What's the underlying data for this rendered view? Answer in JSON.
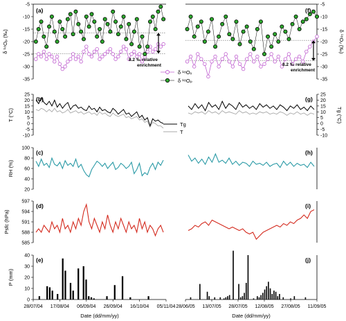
{
  "x_axis": {
    "label": "Date (dd/mm/yy)",
    "left_ticks": [
      "28/07/04",
      "17/08/04",
      "06/09/04",
      "26/09/04",
      "16/10/04",
      "05/11/04"
    ],
    "right_ticks": [
      "28/06/05",
      "13/07/05",
      "28/07/05",
      "12/08/05",
      "27/08/05",
      "11/09/05"
    ]
  },
  "panels": {
    "a": {
      "label": "(a)",
      "ylabel": "δ ¹⁸Oₚ (‰)",
      "ticks": [
        "-5",
        "-10",
        "-15",
        "-20",
        "-25",
        "-30",
        "-35"
      ]
    },
    "f": {
      "label": "(f)",
      "ylabel": "δ ¹⁸Oᵥ (‰)",
      "ticks": [
        "-5",
        "-10",
        "-15",
        "-20",
        "-25",
        "-30",
        "-35"
      ]
    },
    "b": {
      "label": "(b)",
      "ylabel": "T (°C)",
      "ticks": [
        "25",
        "20",
        "15",
        "10",
        "5",
        "0",
        "-5",
        "-10"
      ]
    },
    "g": {
      "label": "(g)",
      "ylabel": "Tg (°C)",
      "ticks": [
        "25",
        "20",
        "15",
        "10",
        "5",
        "0",
        "-5",
        "-10"
      ]
    },
    "c": {
      "label": "(c)",
      "ylabel": "RH (%)",
      "ticks": [
        "100",
        "80",
        "60",
        "40",
        "20"
      ]
    },
    "h": {
      "label": "(h)"
    },
    "d": {
      "label": "(d)",
      "ylabel": "Psfc (hPa)",
      "ticks": [
        "597",
        "594",
        "591",
        "588",
        "585"
      ]
    },
    "i": {
      "label": "(i)"
    },
    "e": {
      "label": "(e)",
      "ylabel": "P (mm)",
      "ticks": [
        "40",
        "30",
        "20",
        "10",
        "0"
      ]
    },
    "j": {
      "label": "(j)"
    }
  },
  "annotations": {
    "left_enrichment": "8.2 ‰ relative enrichment",
    "right_enrichment": "8.2 ‰ relative enrichment"
  },
  "legends": {
    "isotope": [
      "δ ¹⁸Oᵥ",
      "δ ¹⁸Oₚ"
    ],
    "temperature": [
      "Tg",
      "T"
    ]
  },
  "colors": {
    "vapor": "#c060d0",
    "precip": "#2ea82e",
    "tg": "#000000",
    "t": "#a8a8a8",
    "rh": "#2a9aa6",
    "psfc": "#d42a1e",
    "precip_bar": "#000000"
  },
  "chart_data": {
    "type": "line",
    "isotopes_2004": {
      "x": [
        "2004-07-30",
        "2004-08-01",
        "2004-08-03",
        "2004-08-05",
        "2004-08-07",
        "2004-08-09",
        "2004-08-11",
        "2004-08-13",
        "2004-08-15",
        "2004-08-17",
        "2004-08-19",
        "2004-08-21",
        "2004-08-23",
        "2004-08-25",
        "2004-08-27",
        "2004-08-29",
        "2004-08-31",
        "2004-09-02",
        "2004-09-04",
        "2004-09-06",
        "2004-09-08",
        "2004-09-10",
        "2004-09-12",
        "2004-09-14",
        "2004-09-16",
        "2004-09-18",
        "2004-09-20",
        "2004-09-22",
        "2004-09-24",
        "2004-09-26",
        "2004-09-28",
        "2004-09-30",
        "2004-10-02",
        "2004-10-04",
        "2004-10-06",
        "2004-10-08",
        "2004-10-10",
        "2004-10-12",
        "2004-10-14",
        "2004-10-16",
        "2004-10-18",
        "2004-10-20",
        "2004-10-22",
        "2004-10-24",
        "2004-10-26",
        "2004-10-28",
        "2004-10-30",
        "2004-11-01",
        "2004-11-03"
      ],
      "vapor": [
        -27,
        -25,
        -26,
        -24,
        -27,
        -25,
        -26,
        -28,
        -26,
        -29,
        -31,
        -30,
        -28,
        -27,
        -25,
        -27,
        -26,
        -28,
        -24,
        -22,
        -25,
        -26,
        -24,
        -23,
        -27,
        -26,
        -25,
        -24,
        -23,
        -25,
        -27,
        -26,
        -24,
        -22,
        -23,
        -27,
        -25,
        -24,
        -26,
        -25,
        -28,
        -26,
        -24,
        -22,
        -24,
        -23,
        -21,
        -22,
        -21
      ],
      "precip": [
        -20,
        -15,
        -12,
        -18,
        -22,
        -14,
        -10,
        -16,
        -20,
        -12,
        -15,
        -18,
        -11,
        -9,
        -17,
        -8,
        -13,
        -16,
        -19,
        -10,
        -14,
        -9,
        -12,
        -18,
        -15,
        -20,
        -11,
        -13,
        -16,
        -8,
        -12,
        -17,
        -14,
        -10,
        -19,
        -13,
        -21,
        -16,
        -11,
        -22,
        -18,
        -25,
        -22,
        -12,
        -10,
        -15,
        -8,
        -6,
        -11
      ]
    },
    "isotopes_2005": {
      "x": [
        "2005-06-29",
        "2005-07-01",
        "2005-07-03",
        "2005-07-05",
        "2005-07-07",
        "2005-07-09",
        "2005-07-11",
        "2005-07-13",
        "2005-07-15",
        "2005-07-17",
        "2005-07-19",
        "2005-07-21",
        "2005-07-23",
        "2005-07-25",
        "2005-07-27",
        "2005-07-29",
        "2005-07-31",
        "2005-08-02",
        "2005-08-04",
        "2005-08-06",
        "2005-08-08",
        "2005-08-10",
        "2005-08-12",
        "2005-08-14",
        "2005-08-16",
        "2005-08-18",
        "2005-08-20",
        "2005-08-22",
        "2005-08-24",
        "2005-08-26",
        "2005-08-28",
        "2005-08-30",
        "2005-09-01",
        "2005-09-03",
        "2005-09-05",
        "2005-09-07",
        "2005-09-09",
        "2005-09-11"
      ],
      "vapor": [
        -28,
        -26,
        -30,
        -25,
        -27,
        -29,
        -34,
        -28,
        -26,
        -30,
        -27,
        -25,
        -28,
        -30,
        -26,
        -29,
        -31,
        -27,
        -25,
        -28,
        -26,
        -30,
        -29,
        -27,
        -25,
        -28,
        -26,
        -30,
        -27,
        -25,
        -29,
        -27,
        -26,
        -28,
        -24,
        -22,
        -20,
        -18
      ],
      "precip": [
        -15,
        -10,
        -18,
        -14,
        -12,
        -20,
        -16,
        -11,
        -22,
        -18,
        -13,
        -10,
        -17,
        -19,
        -12,
        -21,
        -16,
        -14,
        -20,
        -23,
        -15,
        -12,
        -25,
        -18,
        -22,
        -17,
        -20,
        -14,
        -16,
        -19,
        -13,
        -10,
        -15,
        -12,
        -11,
        -9,
        -8,
        -10
      ]
    },
    "temperature_2004": {
      "tg": [
        20,
        17,
        22,
        18,
        16,
        19,
        15,
        20,
        14,
        17,
        13,
        16,
        18,
        12,
        15,
        16,
        13,
        14,
        12,
        11,
        15,
        12,
        13,
        10,
        14,
        11,
        12,
        10,
        9,
        13,
        11,
        8,
        10,
        12,
        8,
        9,
        6,
        8,
        10,
        5,
        7,
        3,
        5,
        -2,
        4,
        2,
        3,
        1,
        0
      ],
      "t": [
        12,
        11,
        13,
        12,
        10,
        12,
        10,
        13,
        10,
        11,
        9,
        10,
        12,
        9,
        10,
        11,
        9,
        10,
        8,
        9,
        10,
        8,
        9,
        7,
        10,
        8,
        9,
        7,
        6,
        9,
        7,
        6,
        7,
        8,
        5,
        6,
        4,
        5,
        6,
        3,
        4,
        1,
        2,
        -3,
        1,
        0,
        -2,
        -2,
        -4
      ]
    },
    "temperature_2005": {
      "tg": [
        15,
        12,
        17,
        13,
        16,
        11,
        18,
        14,
        16,
        12,
        19,
        13,
        17,
        15,
        12,
        18,
        14,
        16,
        13,
        15,
        12,
        17,
        14,
        16,
        13,
        15,
        12,
        16,
        14,
        11,
        15,
        13,
        16,
        12,
        14,
        11,
        15,
        12
      ],
      "t": [
        9,
        8,
        10,
        9,
        10,
        8,
        11,
        9,
        10,
        8,
        11,
        9,
        10,
        9,
        8,
        11,
        9,
        10,
        8,
        9,
        8,
        10,
        9,
        10,
        8,
        9,
        8,
        10,
        9,
        7,
        9,
        8,
        10,
        8,
        9,
        7,
        9,
        8
      ]
    },
    "rh_2004": [
      74,
      64,
      78,
      66,
      70,
      62,
      80,
      68,
      65,
      72,
      60,
      75,
      66,
      70,
      64,
      78,
      62,
      68,
      56,
      48,
      44,
      58,
      66,
      74,
      70,
      64,
      70,
      60,
      66,
      72,
      58,
      62,
      70,
      66,
      60,
      64,
      72,
      50,
      58,
      70,
      46,
      52,
      48,
      62,
      70,
      58,
      72,
      66,
      76
    ],
    "rh_2005": [
      86,
      74,
      80,
      70,
      78,
      68,
      82,
      72,
      88,
      72,
      76,
      70,
      80,
      68,
      74,
      66,
      72,
      70,
      64,
      74,
      68,
      70,
      66,
      72,
      64,
      68,
      70,
      62,
      74,
      66,
      72,
      64,
      70,
      66,
      68,
      62,
      72,
      64
    ],
    "psfc_2004": [
      588,
      589,
      588,
      590,
      589,
      588,
      591,
      589,
      590,
      588,
      592,
      589,
      590,
      588,
      591,
      589,
      592,
      590,
      594,
      596,
      591,
      589,
      592,
      590,
      588,
      591,
      589,
      593,
      590,
      588,
      591,
      589,
      592,
      590,
      588,
      591,
      589,
      590,
      588,
      592,
      589,
      591,
      588,
      590,
      589,
      587,
      589,
      590,
      588
    ],
    "psfc_2005": [
      588.5,
      589,
      590,
      589.5,
      590.5,
      591,
      590,
      591.5,
      591,
      590.5,
      590,
      589.5,
      589,
      589.5,
      589,
      588.5,
      589,
      588,
      587.5,
      588,
      586,
      587,
      588,
      588.5,
      589,
      589.5,
      590,
      589.5,
      590.5,
      590,
      591,
      590.5,
      591.5,
      592,
      593,
      592,
      594,
      594.5
    ],
    "precip_2004": [
      0,
      3,
      0,
      0,
      12,
      11,
      8,
      0,
      5,
      0,
      37,
      26,
      0,
      15,
      8,
      0,
      28,
      0,
      30,
      18,
      3,
      2,
      1,
      0,
      0,
      0,
      0,
      3,
      0,
      0,
      13,
      0,
      0,
      21,
      0,
      0,
      2,
      0,
      0,
      0,
      0,
      0,
      0,
      3,
      0,
      0,
      0,
      0,
      0
    ],
    "precip_2005": [
      0,
      2,
      0,
      0,
      0,
      0,
      14,
      0,
      0,
      0,
      7,
      3,
      0,
      0,
      2,
      0,
      0,
      2,
      0,
      1,
      2,
      3,
      4,
      0,
      44,
      0,
      0,
      14,
      2,
      3,
      6,
      15,
      40,
      0,
      0,
      1,
      0,
      3,
      2,
      4,
      6,
      9,
      12,
      16,
      10,
      5,
      8,
      7,
      3,
      5,
      0,
      2,
      0,
      0,
      0,
      1,
      0,
      3,
      0,
      0,
      0,
      0,
      0,
      2,
      0,
      0,
      0,
      0
    ]
  }
}
